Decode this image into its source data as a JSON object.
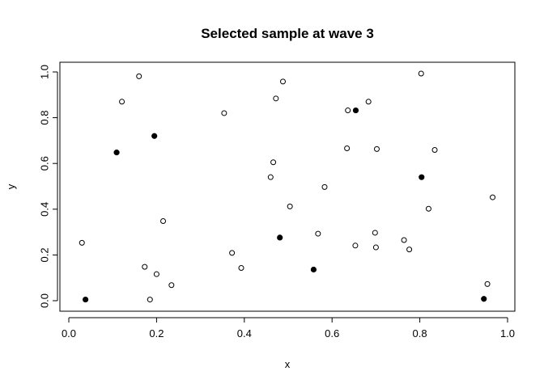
{
  "chart_data": {
    "type": "scatter",
    "title": "Selected sample at wave 3",
    "xlabel": "x",
    "ylabel": "y",
    "xlim": [
      0,
      1
    ],
    "ylim": [
      0,
      1
    ],
    "xticks": [
      "0.0",
      "0.2",
      "0.4",
      "0.6",
      "0.8",
      "1.0"
    ],
    "yticks": [
      "0.0",
      "0.2",
      "0.4",
      "0.6",
      "0.8",
      "1.0"
    ],
    "grid": false,
    "legend": "none",
    "series": [
      {
        "marker": "open-circle",
        "color": "#000000",
        "points": [
          [
            0.03,
            0.253
          ],
          [
            0.121,
            0.87
          ],
          [
            0.16,
            0.981
          ],
          [
            0.173,
            0.148
          ],
          [
            0.185,
            0.005
          ],
          [
            0.2,
            0.116
          ],
          [
            0.215,
            0.348
          ],
          [
            0.234,
            0.068
          ],
          [
            0.354,
            0.82
          ],
          [
            0.372,
            0.209
          ],
          [
            0.393,
            0.143
          ],
          [
            0.46,
            0.54
          ],
          [
            0.466,
            0.605
          ],
          [
            0.472,
            0.884
          ],
          [
            0.488,
            0.958
          ],
          [
            0.504,
            0.412
          ],
          [
            0.568,
            0.293
          ],
          [
            0.583,
            0.497
          ],
          [
            0.634,
            0.666
          ],
          [
            0.636,
            0.832
          ],
          [
            0.653,
            0.241
          ],
          [
            0.683,
            0.87
          ],
          [
            0.698,
            0.297
          ],
          [
            0.7,
            0.233
          ],
          [
            0.702,
            0.663
          ],
          [
            0.764,
            0.265
          ],
          [
            0.776,
            0.224
          ],
          [
            0.803,
            0.993
          ],
          [
            0.82,
            0.402
          ],
          [
            0.834,
            0.659
          ],
          [
            0.954,
            0.073
          ],
          [
            0.966,
            0.452
          ]
        ]
      },
      {
        "marker": "filled-circle",
        "color": "#000000",
        "points": [
          [
            0.038,
            0.005
          ],
          [
            0.109,
            0.648
          ],
          [
            0.195,
            0.72
          ],
          [
            0.481,
            0.276
          ],
          [
            0.558,
            0.136
          ],
          [
            0.654,
            0.832
          ],
          [
            0.804,
            0.54
          ],
          [
            0.946,
            0.008
          ]
        ]
      }
    ]
  }
}
